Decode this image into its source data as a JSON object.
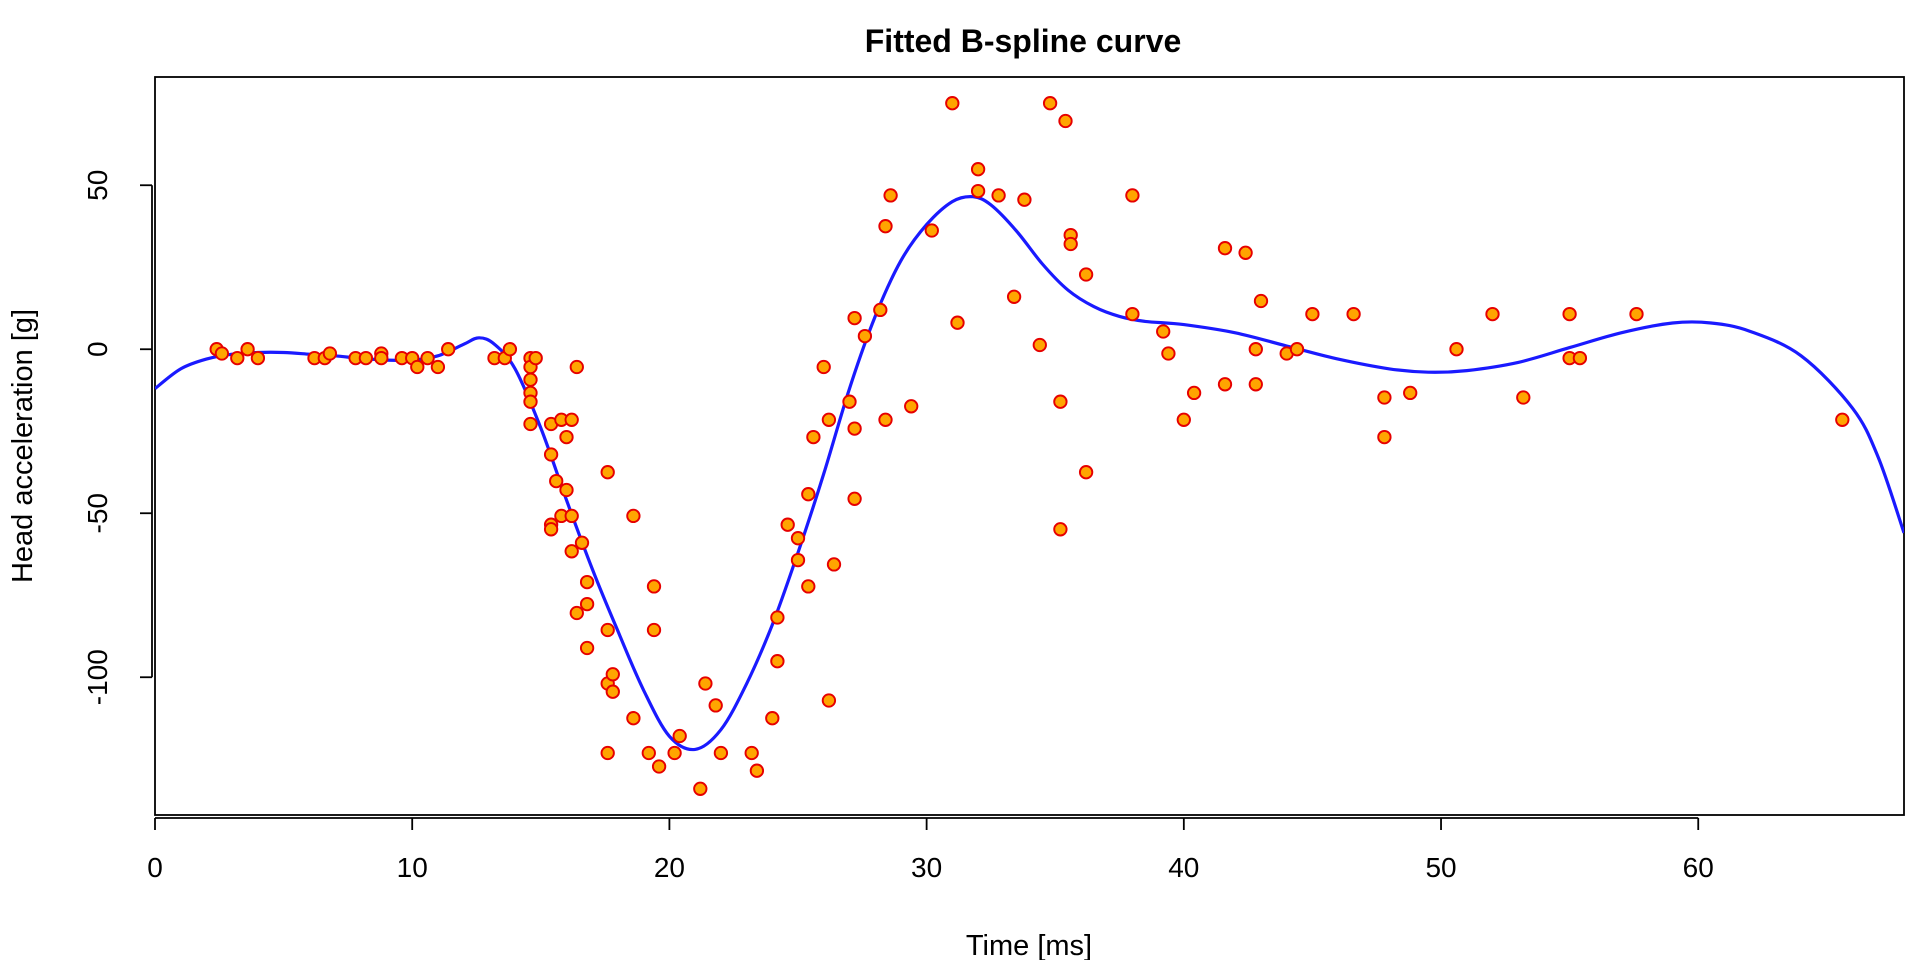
{
  "chart_data": {
    "type": "scatter",
    "title": "Fitted B-spline curve",
    "xlabel": "Time [ms]",
    "ylabel": "Head acceleration [g]",
    "xlim": [
      0,
      68
    ],
    "ylim": [
      -142,
      83
    ],
    "xticks": [
      0,
      10,
      20,
      30,
      40,
      50,
      60
    ],
    "yticks": [
      -100,
      -50,
      0,
      50
    ],
    "grid": false,
    "legend": "none",
    "colors": {
      "point_fill": "#ffa500",
      "point_stroke": "#e60000",
      "curve": "#1a1aff",
      "axis": "#000000"
    },
    "series": [
      {
        "type": "scatter",
        "points": [
          [
            2.4,
            0.0
          ],
          [
            2.6,
            -1.3
          ],
          [
            3.2,
            -2.7
          ],
          [
            3.6,
            0.0
          ],
          [
            4.0,
            -2.7
          ],
          [
            6.2,
            -2.7
          ],
          [
            6.6,
            -2.7
          ],
          [
            6.8,
            -1.3
          ],
          [
            7.8,
            -2.7
          ],
          [
            8.2,
            -2.7
          ],
          [
            8.8,
            -1.3
          ],
          [
            8.8,
            -2.7
          ],
          [
            9.6,
            -2.7
          ],
          [
            10.0,
            -2.7
          ],
          [
            10.2,
            -5.4
          ],
          [
            10.6,
            -2.7
          ],
          [
            11.0,
            -5.4
          ],
          [
            11.4,
            0.0
          ],
          [
            13.2,
            -2.7
          ],
          [
            13.6,
            -2.7
          ],
          [
            13.8,
            0.0
          ],
          [
            14.6,
            -2.7
          ],
          [
            14.6,
            -5.4
          ],
          [
            14.6,
            -9.3
          ],
          [
            14.6,
            -13.3
          ],
          [
            14.6,
            -16.0
          ],
          [
            14.6,
            -22.8
          ],
          [
            14.8,
            -2.7
          ],
          [
            15.4,
            -22.8
          ],
          [
            15.4,
            -32.1
          ],
          [
            15.4,
            -53.5
          ],
          [
            15.4,
            -54.9
          ],
          [
            15.6,
            -40.2
          ],
          [
            15.8,
            -21.5
          ],
          [
            15.8,
            -50.8
          ],
          [
            16.0,
            -26.8
          ],
          [
            16.0,
            -42.9
          ],
          [
            16.2,
            -21.5
          ],
          [
            16.2,
            -50.8
          ],
          [
            16.2,
            -61.6
          ],
          [
            16.4,
            -5.4
          ],
          [
            16.4,
            -80.4
          ],
          [
            16.6,
            -59.0
          ],
          [
            16.8,
            -71.0
          ],
          [
            16.8,
            -77.7
          ],
          [
            16.8,
            -91.1
          ],
          [
            17.6,
            -37.5
          ],
          [
            17.6,
            -85.6
          ],
          [
            17.6,
            -101.9
          ],
          [
            17.6,
            -123.1
          ],
          [
            17.8,
            -99.1
          ],
          [
            17.8,
            -104.4
          ],
          [
            18.6,
            -112.5
          ],
          [
            18.6,
            -50.8
          ],
          [
            19.2,
            -123.1
          ],
          [
            19.4,
            -72.3
          ],
          [
            19.4,
            -85.6
          ],
          [
            19.6,
            -127.2
          ],
          [
            20.2,
            -123.1
          ],
          [
            20.4,
            -117.9
          ],
          [
            21.2,
            -134.0
          ],
          [
            21.4,
            -101.9
          ],
          [
            21.8,
            -108.6
          ],
          [
            22.0,
            -123.1
          ],
          [
            23.2,
            -123.1
          ],
          [
            23.4,
            -128.5
          ],
          [
            24.0,
            -112.5
          ],
          [
            24.2,
            -95.1
          ],
          [
            24.2,
            -81.8
          ],
          [
            24.6,
            -53.5
          ],
          [
            25.0,
            -64.3
          ],
          [
            25.0,
            -57.6
          ],
          [
            25.4,
            -72.3
          ],
          [
            25.4,
            -44.2
          ],
          [
            25.6,
            -26.8
          ],
          [
            26.0,
            -5.4
          ],
          [
            26.2,
            -21.5
          ],
          [
            26.2,
            -107.1
          ],
          [
            26.4,
            -65.6
          ],
          [
            27.0,
            -16.0
          ],
          [
            27.2,
            -24.2
          ],
          [
            27.2,
            -45.6
          ],
          [
            27.2,
            9.5
          ],
          [
            27.6,
            4.0
          ],
          [
            28.2,
            12.0
          ],
          [
            28.4,
            37.5
          ],
          [
            28.4,
            -21.5
          ],
          [
            28.6,
            46.9
          ],
          [
            29.4,
            -17.4
          ],
          [
            30.2,
            36.2
          ],
          [
            31.0,
            75.0
          ],
          [
            31.2,
            8.1
          ],
          [
            32.0,
            48.2
          ],
          [
            32.0,
            54.9
          ],
          [
            32.8,
            46.9
          ],
          [
            33.4,
            16.0
          ],
          [
            33.8,
            45.6
          ],
          [
            34.4,
            1.3
          ],
          [
            34.8,
            75.0
          ],
          [
            35.2,
            -16.0
          ],
          [
            35.2,
            -54.9
          ],
          [
            35.4,
            69.6
          ],
          [
            35.6,
            34.8
          ],
          [
            35.6,
            32.1
          ],
          [
            36.2,
            22.8
          ],
          [
            36.2,
            -37.5
          ],
          [
            38.0,
            46.9
          ],
          [
            38.0,
            10.7
          ],
          [
            39.2,
            5.4
          ],
          [
            39.4,
            -1.3
          ],
          [
            40.0,
            -21.5
          ],
          [
            40.4,
            -13.3
          ],
          [
            41.6,
            30.8
          ],
          [
            41.6,
            -10.7
          ],
          [
            42.4,
            29.4
          ],
          [
            42.8,
            0.0
          ],
          [
            42.8,
            -10.7
          ],
          [
            43.0,
            14.7
          ],
          [
            44.0,
            -1.3
          ],
          [
            44.4,
            0.0
          ],
          [
            45.0,
            10.7
          ],
          [
            46.6,
            10.7
          ],
          [
            47.8,
            -14.7
          ],
          [
            47.8,
            -26.8
          ],
          [
            48.8,
            -13.3
          ],
          [
            50.6,
            0.0
          ],
          [
            52.0,
            10.7
          ],
          [
            53.2,
            -14.7
          ],
          [
            55.0,
            10.7
          ],
          [
            55.0,
            -2.7
          ],
          [
            55.4,
            -2.7
          ],
          [
            57.6,
            10.7
          ],
          [
            65.6,
            -21.5
          ]
        ]
      },
      {
        "type": "line",
        "points": [
          [
            0.0,
            -12.0
          ],
          [
            1.0,
            -6.0
          ],
          [
            2.0,
            -3.0
          ],
          [
            3.0,
            -1.5
          ],
          [
            4.0,
            -1.0
          ],
          [
            5.0,
            -1.0
          ],
          [
            6.0,
            -1.5
          ],
          [
            7.0,
            -2.0
          ],
          [
            8.0,
            -2.8
          ],
          [
            9.0,
            -3.3
          ],
          [
            10.0,
            -3.3
          ],
          [
            11.0,
            -2.0
          ],
          [
            12.0,
            1.5
          ],
          [
            12.6,
            3.5
          ],
          [
            13.2,
            1.5
          ],
          [
            14.0,
            -6.0
          ],
          [
            15.0,
            -24.0
          ],
          [
            16.0,
            -46.0
          ],
          [
            17.0,
            -67.0
          ],
          [
            18.0,
            -86.0
          ],
          [
            19.0,
            -104.0
          ],
          [
            20.0,
            -118.0
          ],
          [
            21.0,
            -122.0
          ],
          [
            22.0,
            -116.0
          ],
          [
            23.0,
            -102.0
          ],
          [
            24.0,
            -84.0
          ],
          [
            25.0,
            -62.0
          ],
          [
            26.0,
            -38.0
          ],
          [
            27.0,
            -12.0
          ],
          [
            28.0,
            10.0
          ],
          [
            29.0,
            27.0
          ],
          [
            30.0,
            38.0
          ],
          [
            31.0,
            45.0
          ],
          [
            31.8,
            46.5
          ],
          [
            32.5,
            44.0
          ],
          [
            33.5,
            36.0
          ],
          [
            34.5,
            26.0
          ],
          [
            35.5,
            18.0
          ],
          [
            36.5,
            13.0
          ],
          [
            37.5,
            10.0
          ],
          [
            38.5,
            8.5
          ],
          [
            40.0,
            7.5
          ],
          [
            42.0,
            5.0
          ],
          [
            44.0,
            1.0
          ],
          [
            46.0,
            -3.0
          ],
          [
            48.0,
            -6.0
          ],
          [
            49.5,
            -7.0
          ],
          [
            51.0,
            -6.5
          ],
          [
            53.0,
            -4.0
          ],
          [
            55.0,
            0.5
          ],
          [
            57.0,
            5.0
          ],
          [
            59.0,
            8.0
          ],
          [
            60.5,
            8.0
          ],
          [
            62.0,
            5.5
          ],
          [
            64.0,
            -2.0
          ],
          [
            66.0,
            -18.0
          ],
          [
            67.0,
            -33.0
          ],
          [
            68.0,
            -56.0
          ]
        ]
      }
    ]
  }
}
